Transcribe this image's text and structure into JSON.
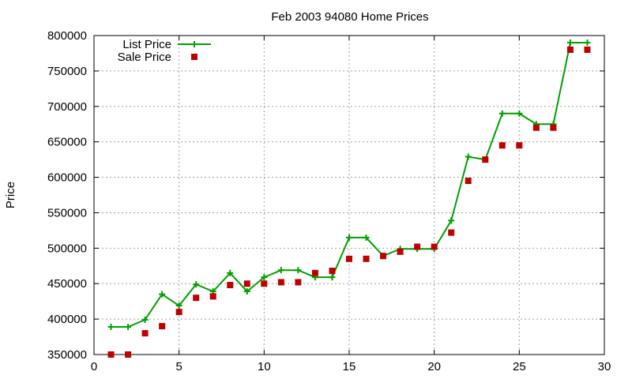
{
  "chart_data": {
    "type": "line",
    "title": "Feb 2003 94080 Home Prices",
    "xlabel": "",
    "ylabel": "Price",
    "xlim": [
      0,
      30
    ],
    "ylim": [
      350000,
      800000
    ],
    "x_ticks": [
      0,
      5,
      10,
      15,
      20,
      25,
      30
    ],
    "y_ticks": [
      350000,
      400000,
      450000,
      500000,
      550000,
      600000,
      650000,
      700000,
      750000,
      800000
    ],
    "grid": true,
    "legend_position": "top-left",
    "series": [
      {
        "name": "List Price",
        "style": "line-with-plus-markers",
        "color": "#00a000",
        "x": [
          1,
          2,
          3,
          4,
          5,
          6,
          7,
          8,
          9,
          10,
          11,
          12,
          13,
          14,
          15,
          16,
          17,
          18,
          19,
          20,
          21,
          22,
          23,
          24,
          25,
          26,
          27,
          28,
          29
        ],
        "y": [
          389000,
          389000,
          399000,
          435000,
          419000,
          449000,
          439000,
          465000,
          439000,
          459000,
          469000,
          469000,
          459000,
          459000,
          515000,
          515000,
          489000,
          499000,
          499000,
          499000,
          539000,
          629000,
          625000,
          690000,
          690000,
          675000,
          675000,
          790000,
          790000
        ]
      },
      {
        "name": "Sale Price",
        "style": "square-markers",
        "color": "#c00000",
        "x": [
          1,
          2,
          3,
          4,
          5,
          6,
          7,
          8,
          9,
          10,
          11,
          12,
          13,
          14,
          15,
          16,
          17,
          18,
          19,
          20,
          21,
          22,
          23,
          24,
          25,
          26,
          27,
          28,
          29
        ],
        "y": [
          350000,
          350000,
          380000,
          390000,
          410000,
          430000,
          432000,
          448000,
          450000,
          450000,
          452000,
          452000,
          465000,
          468000,
          485000,
          485000,
          489000,
          495000,
          502000,
          502000,
          522000,
          595000,
          625000,
          645000,
          645000,
          670000,
          670000,
          780000,
          780000
        ]
      }
    ]
  }
}
